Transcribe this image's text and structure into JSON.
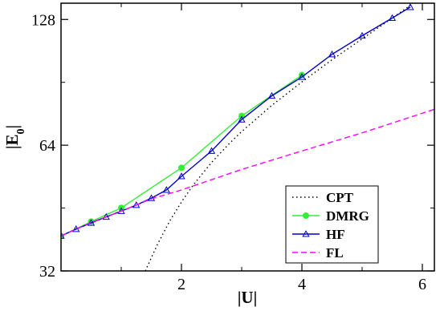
{
  "chart_data": {
    "type": "line",
    "xlabel": "|U|",
    "ylabel": "|E",
    "ylabel_subscript": "0",
    "ylabel_suffix": "|",
    "xlim": [
      0,
      6.2
    ],
    "ylim": [
      32,
      140
    ],
    "yscale": "log",
    "xticks": [
      2,
      4,
      6
    ],
    "xtick_labels": [
      "2",
      "4",
      "6"
    ],
    "yticks": [
      32,
      64,
      128
    ],
    "ytick_labels": [
      "32",
      "64",
      "128"
    ],
    "grid": false,
    "legend_position": "bottom-right",
    "series": [
      {
        "name": "CPT",
        "color": "#000000",
        "dash": "dotted",
        "marker": "none",
        "x": [
          1.4,
          1.6,
          1.8,
          2.0,
          2.2,
          2.5,
          2.8,
          3.0,
          3.5,
          4.0,
          4.5,
          5.0,
          5.5,
          6.0
        ],
        "y": [
          32.0,
          37.0,
          42.0,
          46.8,
          51.5,
          58.2,
          64.7,
          69.0,
          79.7,
          90.7,
          102.5,
          115.0,
          129.0,
          145.0
        ]
      },
      {
        "name": "DMRG",
        "color": "#33ee33",
        "dash": "solid",
        "marker": "circle",
        "x": [
          0.0,
          0.5,
          1.0,
          2.0,
          3.0,
          4.0
        ],
        "y": [
          38.8,
          42.0,
          45.3,
          56.5,
          75.2,
          94.2
        ]
      },
      {
        "name": "HF",
        "color": "#0000cc",
        "dash": "solid",
        "marker": "triangle",
        "x": [
          0.0,
          0.25,
          0.5,
          0.75,
          1.0,
          1.25,
          1.5,
          1.75,
          2.0,
          2.5,
          3.0,
          3.5,
          4.0,
          4.5,
          5.0,
          5.5,
          5.8
        ],
        "y": [
          38.8,
          40.3,
          41.7,
          43.1,
          44.5,
          46.0,
          47.8,
          50.0,
          53.9,
          62.0,
          73.7,
          84.0,
          93.2,
          105.6,
          117.0,
          129.0,
          137.0
        ]
      },
      {
        "name": "FL",
        "color": "#ff00ff",
        "dash": "dashed",
        "marker": "none",
        "x": [
          0.0,
          0.5,
          1.0,
          1.5,
          2.0,
          3.0,
          4.0,
          5.0,
          6.2
        ],
        "y": [
          38.8,
          41.8,
          44.5,
          47.6,
          50.0,
          56.0,
          62.0,
          68.5,
          78.0
        ]
      }
    ]
  }
}
